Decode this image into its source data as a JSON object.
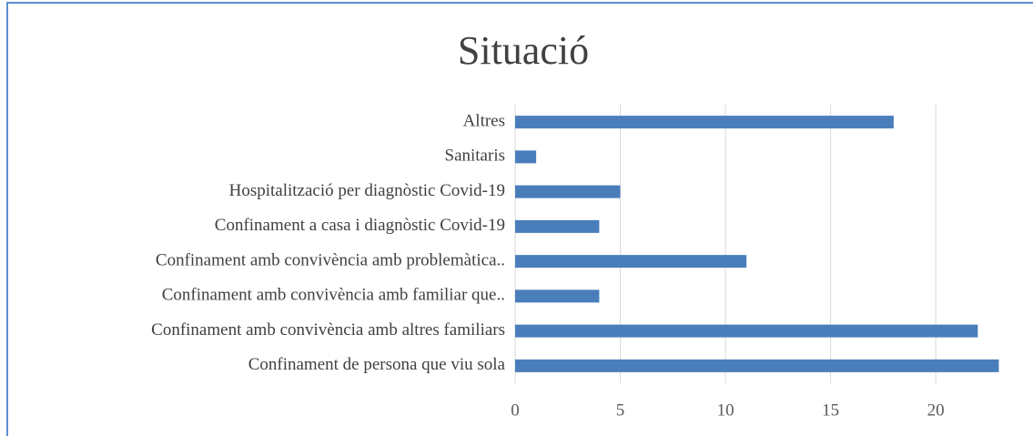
{
  "chart_data": {
    "type": "barh",
    "title": "Situació",
    "categories": [
      "Altres",
      "Sanitaris",
      "Hospitalització per diagnòstic Covid-19",
      "Confinament a casa i diagnòstic Covid-19",
      "Confinament amb convivència amb problemàtica..",
      "Confinament amb convivència amb familiar que..",
      "Confinament amb convivència amb altres familiars",
      "Confinament de persona que viu sola"
    ],
    "values": [
      18,
      1,
      5,
      4,
      11,
      4,
      22,
      23
    ],
    "color": "#4a7ebb",
    "xlim": [
      0,
      23.5
    ],
    "xticks": [
      0,
      5,
      10,
      15,
      20
    ],
    "grid": true
  }
}
